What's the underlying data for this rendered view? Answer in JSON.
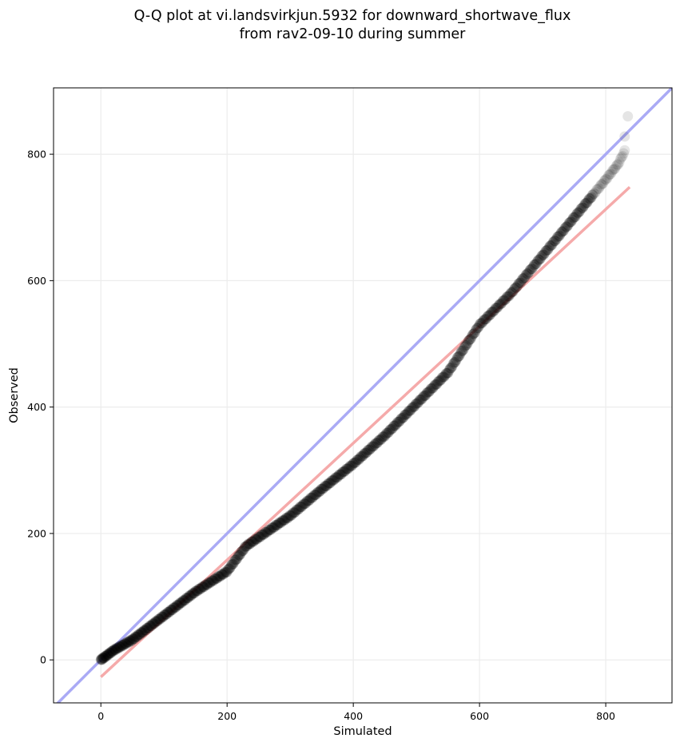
{
  "chart_data": {
    "type": "scatter",
    "title_lines": [
      "Q-Q plot at vi.landsvirkjun.5932 for downward_shortwave_flux",
      "from rav2-09-10 during summer"
    ],
    "xlabel": "Simulated",
    "ylabel": "Observed",
    "xlim": [
      -75,
      905
    ],
    "ylim": [
      -68,
      905
    ],
    "x_ticks": [
      0,
      200,
      400,
      600,
      800
    ],
    "y_ticks": [
      0,
      200,
      400,
      600,
      800
    ],
    "x_tick_labels": [
      "0",
      "200",
      "400",
      "600",
      "800"
    ],
    "y_tick_labels": [
      "0",
      "200",
      "400",
      "600",
      "800"
    ],
    "grid": true,
    "point_color": "#000000",
    "identity_line_color": "#aaaaf5",
    "fit_line_color": "#f5aaaa",
    "curve_knots": [
      [
        0,
        0
      ],
      [
        20,
        15
      ],
      [
        50,
        32
      ],
      [
        100,
        70
      ],
      [
        150,
        108
      ],
      [
        200,
        140
      ],
      [
        230,
        180
      ],
      [
        300,
        228
      ],
      [
        350,
        270
      ],
      [
        400,
        310
      ],
      [
        450,
        355
      ],
      [
        500,
        405
      ],
      [
        550,
        455
      ],
      [
        600,
        530
      ],
      [
        650,
        580
      ],
      [
        700,
        640
      ],
      [
        750,
        700
      ],
      [
        800,
        760
      ],
      [
        820,
        785
      ],
      [
        830,
        805
      ]
    ],
    "outlier_points": [
      [
        830,
        828
      ],
      [
        835,
        860
      ]
    ],
    "fit_line": {
      "x": [
        0,
        838
      ],
      "y": [
        -27,
        748
      ]
    },
    "identity_line": {
      "x": [
        -75,
        905
      ],
      "y": [
        -75,
        905
      ]
    }
  }
}
